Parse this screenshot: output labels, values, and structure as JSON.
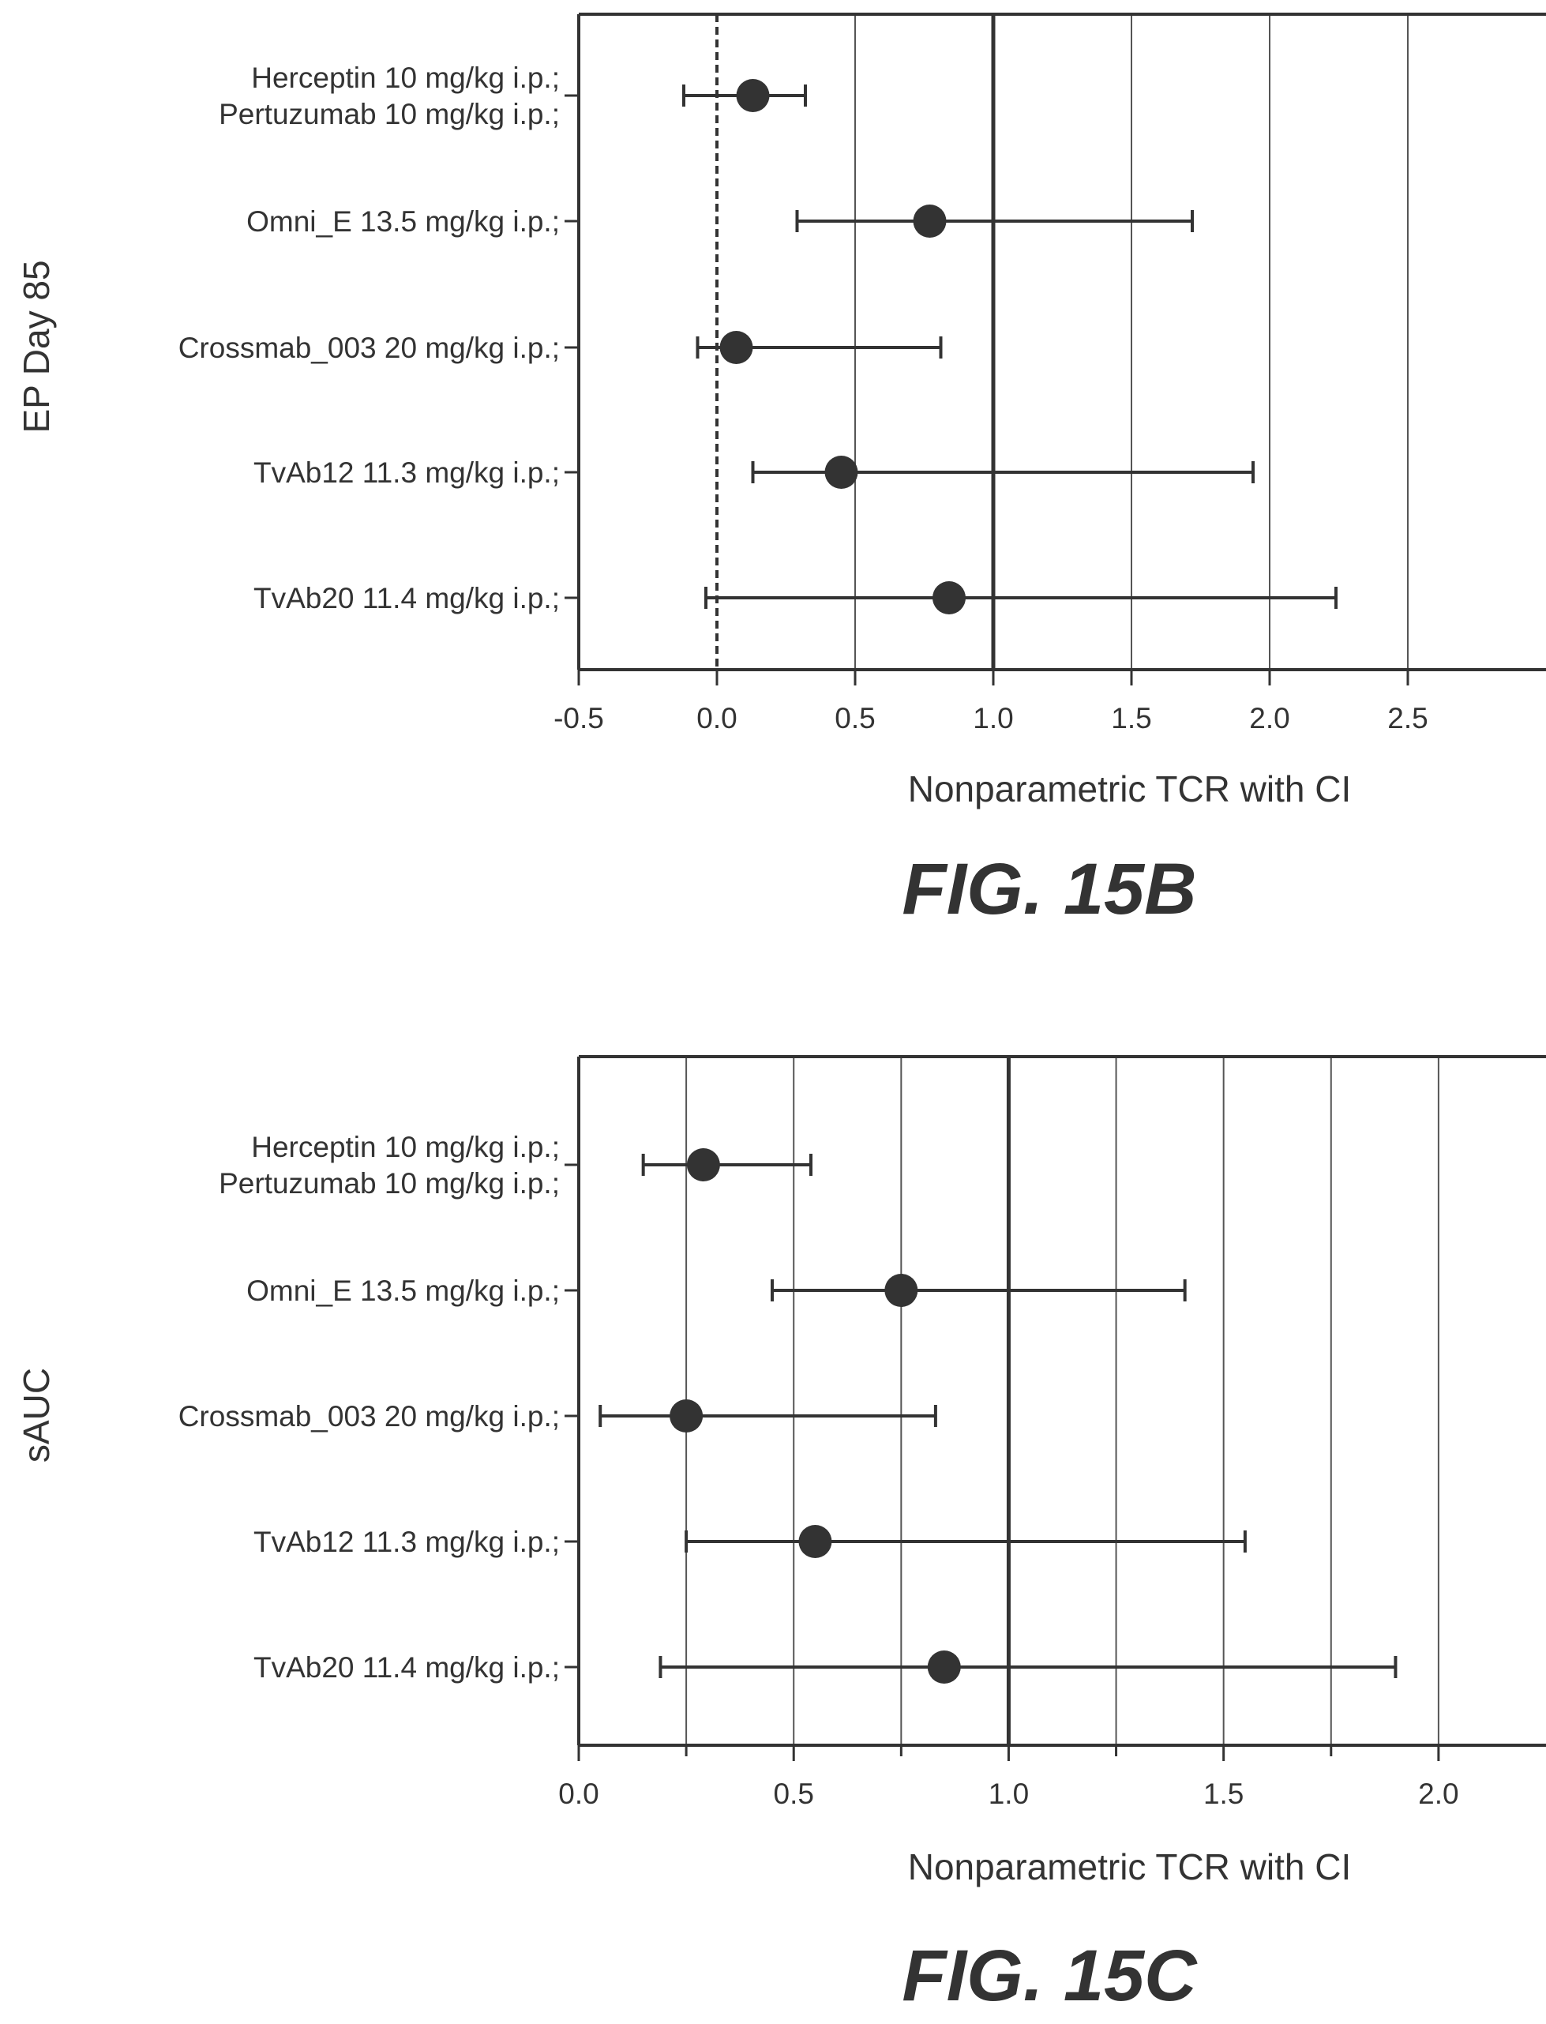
{
  "chart_data": [
    {
      "type": "forest",
      "figure_label": "FIG. 15B",
      "ylabel": "EP Day 85",
      "xlabel": "Nonparametric TCR with CI",
      "xlim": [
        -0.5,
        3.0
      ],
      "xticks": [
        -0.5,
        0.0,
        0.5,
        1.0,
        1.5,
        2.0,
        2.5
      ],
      "xtick_labels": [
        "-0.5",
        "0.0",
        "0.5",
        "1.0",
        "1.5",
        "2.0",
        "2.5"
      ],
      "grid": true,
      "reference_solid": 1.0,
      "reference_dashed": 0.0,
      "rows": [
        {
          "label": [
            "Herceptin 10 mg/kg i.p.;",
            "Pertuzumab 10 mg/kg i.p.;"
          ],
          "estimate": 0.13,
          "ci": [
            -0.12,
            0.32
          ]
        },
        {
          "label": [
            "Omni_E 13.5 mg/kg i.p.;"
          ],
          "estimate": 0.77,
          "ci": [
            0.29,
            1.72
          ]
        },
        {
          "label": [
            "Crossmab_003 20 mg/kg i.p.;"
          ],
          "estimate": 0.07,
          "ci": [
            -0.07,
            0.81
          ]
        },
        {
          "label": [
            "TvAb12 11.3 mg/kg i.p.;"
          ],
          "estimate": 0.45,
          "ci": [
            0.13,
            1.94
          ]
        },
        {
          "label": [
            "TvAb20 11.4 mg/kg i.p.;"
          ],
          "estimate": 0.84,
          "ci": [
            -0.04,
            2.24
          ]
        }
      ]
    },
    {
      "type": "forest",
      "figure_label": "FIG. 15C",
      "ylabel": "sAUC",
      "xlabel": "Nonparametric TCR with CI",
      "xlim": [
        0.0,
        2.25
      ],
      "xticks": [
        0.0,
        0.5,
        1.0,
        1.5,
        2.0
      ],
      "xtick_labels": [
        "0.0",
        "0.5",
        "1.0",
        "1.5",
        "2.0"
      ],
      "minor_grid": [
        0.25,
        0.75,
        1.25,
        1.75
      ],
      "grid": true,
      "reference_solid": 1.0,
      "reference_dashed": 0.0,
      "rows": [
        {
          "label": [
            "Herceptin 10 mg/kg i.p.;",
            "Pertuzumab 10 mg/kg i.p.;"
          ],
          "estimate": 0.29,
          "ci": [
            0.15,
            0.54
          ]
        },
        {
          "label": [
            "Omni_E 13.5 mg/kg i.p.;"
          ],
          "estimate": 0.75,
          "ci": [
            0.45,
            1.41
          ]
        },
        {
          "label": [
            "Crossmab_003 20 mg/kg i.p.;"
          ],
          "estimate": 0.25,
          "ci": [
            0.05,
            0.83
          ]
        },
        {
          "label": [
            "TvAb12 11.3 mg/kg i.p.;"
          ],
          "estimate": 0.55,
          "ci": [
            0.25,
            1.55
          ]
        },
        {
          "label": [
            "TvAb20 11.4 mg/kg i.p.;"
          ],
          "estimate": 0.85,
          "ci": [
            0.19,
            1.9
          ]
        }
      ]
    }
  ],
  "colors": {
    "ink": "#333333",
    "grid": "#555555",
    "marker": "#333333",
    "background": "#ffffff"
  }
}
